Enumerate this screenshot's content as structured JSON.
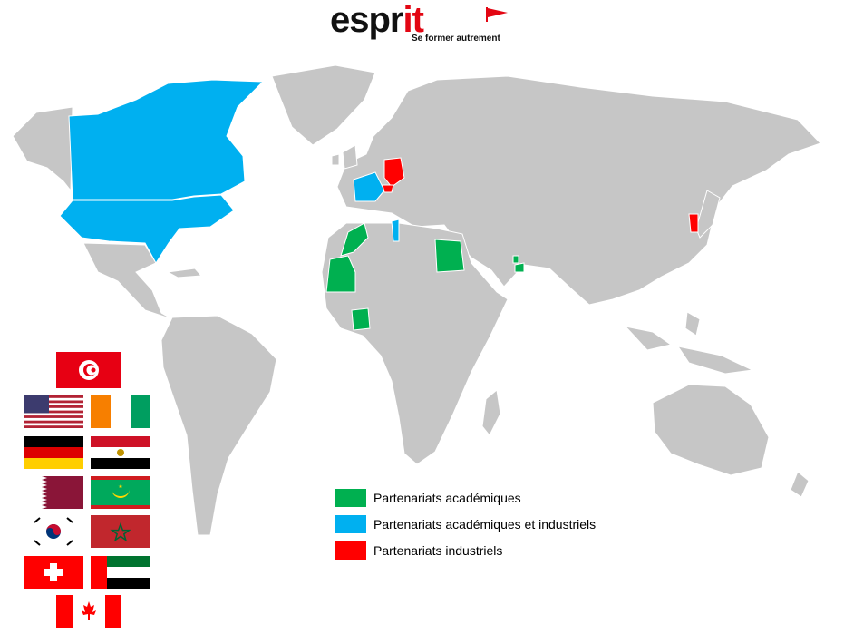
{
  "header": {
    "brand_left": "espr",
    "brand_right": "it",
    "tagline": "Se former autrement"
  },
  "legend": {
    "items": [
      {
        "label": "Partenariats académiques",
        "color": "#00b050"
      },
      {
        "label": "Partenariats académiques et industriels",
        "color": "#00b0f0"
      },
      {
        "label": "Partenariats industriels",
        "color": "#ff0000"
      }
    ]
  },
  "map": {
    "land_color": "#c6c6c6",
    "border_color": "#ffffff",
    "highlighted": {
      "academic": [
        "Morocco",
        "Mauritania",
        "Côte d'Ivoire",
        "Egypt",
        "Qatar",
        "UAE"
      ],
      "academic_and_industrial": [
        "Canada",
        "United States",
        "France",
        "Tunisia"
      ],
      "industrial": [
        "Germany",
        "Switzerland",
        "South Korea"
      ]
    }
  },
  "flags": {
    "items": [
      "Tunisia",
      "United States",
      "Côte d'Ivoire",
      "Germany",
      "Egypt",
      "Qatar",
      "Mauritania",
      "South Korea",
      "Morocco",
      "Switzerland",
      "United Arab Emirates",
      "Canada"
    ]
  }
}
